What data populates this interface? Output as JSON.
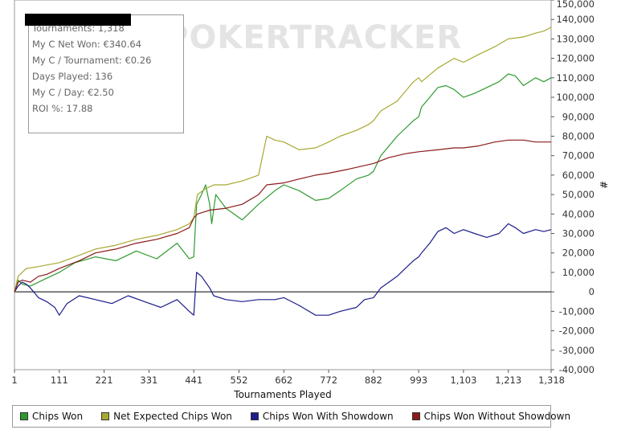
{
  "watermark": "POKERTRACKER",
  "stats_box": {
    "lines": [
      "Tournaments: 1,318",
      "My C Net Won: €340.64",
      "My C / Tournament: €0.26",
      "Days Played: 136",
      "My C / Day: €2.50",
      "ROI %: 17.88"
    ]
  },
  "chart_data": {
    "type": "line",
    "title": "",
    "xlabel": "Tournaments Played",
    "ylabel": "#",
    "xlim": [
      1,
      1318
    ],
    "ylim": [
      -40000,
      150000
    ],
    "x_ticks": [
      1,
      111,
      221,
      331,
      441,
      552,
      662,
      772,
      882,
      993,
      1103,
      1213,
      1318
    ],
    "x_tick_labels": [
      "1",
      "111",
      "221",
      "331",
      "441",
      "552",
      "662",
      "772",
      "882",
      "993",
      "1,103",
      "1,213",
      "1,318"
    ],
    "y_ticks": [
      -40000,
      -30000,
      -20000,
      -10000,
      0,
      10000,
      20000,
      30000,
      40000,
      50000,
      60000,
      70000,
      80000,
      90000,
      100000,
      110000,
      120000,
      130000,
      140000,
      150000
    ],
    "y_tick_labels": [
      "-40,000",
      "-30,000",
      "-20,000",
      "-10,000",
      "0",
      "10,000",
      "20,000",
      "30,000",
      "40,000",
      "50,000",
      "60,000",
      "70,000",
      "80,000",
      "90,000",
      "100,000",
      "110,000",
      "120,000",
      "130,000",
      "140,000",
      "150,000"
    ],
    "grid": false,
    "zero_line": true,
    "legend_position": "bottom",
    "series": [
      {
        "name": "Chips Won",
        "color": "#2e9a2e",
        "x": [
          1,
          10,
          20,
          40,
          60,
          80,
          111,
          150,
          200,
          250,
          300,
          350,
          400,
          430,
          441,
          448,
          460,
          470,
          480,
          485,
          495,
          520,
          560,
          600,
          640,
          662,
          700,
          740,
          772,
          800,
          840,
          870,
          882,
          900,
          940,
          980,
          993,
          1000,
          1020,
          1040,
          1060,
          1080,
          1103,
          1130,
          1160,
          1190,
          1213,
          1230,
          1250,
          1280,
          1300,
          1318
        ],
        "y": [
          0,
          6000,
          4000,
          3000,
          5000,
          7000,
          10000,
          15000,
          18000,
          16000,
          21000,
          17000,
          25000,
          17000,
          18000,
          45000,
          50000,
          55000,
          45000,
          35000,
          50000,
          43000,
          37000,
          45000,
          52000,
          55000,
          52000,
          47000,
          48000,
          52000,
          58000,
          60000,
          62000,
          70000,
          80000,
          88000,
          90000,
          95000,
          100000,
          105000,
          106000,
          104000,
          100000,
          102000,
          105000,
          108000,
          112000,
          111000,
          106000,
          110000,
          108000,
          110000
        ]
      },
      {
        "name": "Net Expected Chips Won",
        "color": "#a8a832",
        "x": [
          1,
          10,
          30,
          60,
          111,
          150,
          200,
          250,
          300,
          350,
          400,
          430,
          441,
          450,
          470,
          490,
          520,
          560,
          600,
          620,
          640,
          662,
          700,
          740,
          772,
          800,
          840,
          870,
          882,
          900,
          940,
          980,
          993,
          1000,
          1040,
          1080,
          1103,
          1140,
          1180,
          1213,
          1250,
          1280,
          1300,
          1318
        ],
        "y": [
          0,
          8000,
          12000,
          13000,
          15000,
          18000,
          22000,
          24000,
          27000,
          29000,
          32000,
          35000,
          38000,
          50000,
          53000,
          55000,
          55000,
          57000,
          60000,
          80000,
          78000,
          77000,
          73000,
          74000,
          77000,
          80000,
          83000,
          86000,
          88000,
          93000,
          98000,
          108000,
          110000,
          108000,
          115000,
          120000,
          118000,
          122000,
          126000,
          130000,
          131000,
          133000,
          134000,
          136000
        ]
      },
      {
        "name": "Chips Won With Showdown",
        "color": "#1c1c8c",
        "x": [
          1,
          10,
          20,
          30,
          40,
          60,
          80,
          100,
          111,
          130,
          160,
          200,
          240,
          280,
          320,
          360,
          400,
          430,
          441,
          448,
          460,
          470,
          480,
          490,
          520,
          560,
          600,
          640,
          662,
          700,
          740,
          772,
          800,
          840,
          860,
          882,
          900,
          920,
          940,
          960,
          980,
          993,
          1000,
          1020,
          1040,
          1060,
          1080,
          1103,
          1130,
          1160,
          1190,
          1213,
          1230,
          1250,
          1280,
          1300,
          1318
        ],
        "y": [
          0,
          3000,
          5000,
          4000,
          2000,
          -3000,
          -5000,
          -8000,
          -12000,
          -6000,
          -2000,
          -4000,
          -6000,
          -2000,
          -5000,
          -8000,
          -4000,
          -10000,
          -12000,
          10000,
          8000,
          5000,
          2000,
          -2000,
          -4000,
          -5000,
          -4000,
          -4000,
          -3000,
          -7000,
          -12000,
          -12000,
          -10000,
          -8000,
          -4000,
          -3000,
          2000,
          5000,
          8000,
          12000,
          16000,
          18000,
          20000,
          25000,
          31000,
          33000,
          30000,
          32000,
          30000,
          28000,
          30000,
          35000,
          33000,
          30000,
          32000,
          31000,
          32000
        ]
      },
      {
        "name": "Chips Won Without Showdown",
        "color": "#8b1a1a",
        "x": [
          1,
          10,
          20,
          40,
          60,
          80,
          111,
          160,
          200,
          250,
          300,
          350,
          400,
          430,
          441,
          450,
          480,
          520,
          560,
          600,
          620,
          662,
          700,
          740,
          772,
          820,
          882,
          920,
          960,
          993,
          1040,
          1080,
          1103,
          1140,
          1180,
          1213,
          1250,
          1280,
          1300,
          1318
        ],
        "y": [
          0,
          5000,
          6000,
          5000,
          8000,
          9000,
          12000,
          16000,
          20000,
          22000,
          25000,
          27000,
          30000,
          33000,
          38000,
          40000,
          42000,
          43000,
          45000,
          50000,
          55000,
          56000,
          58000,
          60000,
          61000,
          63000,
          66000,
          69000,
          71000,
          72000,
          73000,
          74000,
          74000,
          75000,
          77000,
          78000,
          78000,
          77000,
          77000,
          77000
        ]
      }
    ]
  }
}
